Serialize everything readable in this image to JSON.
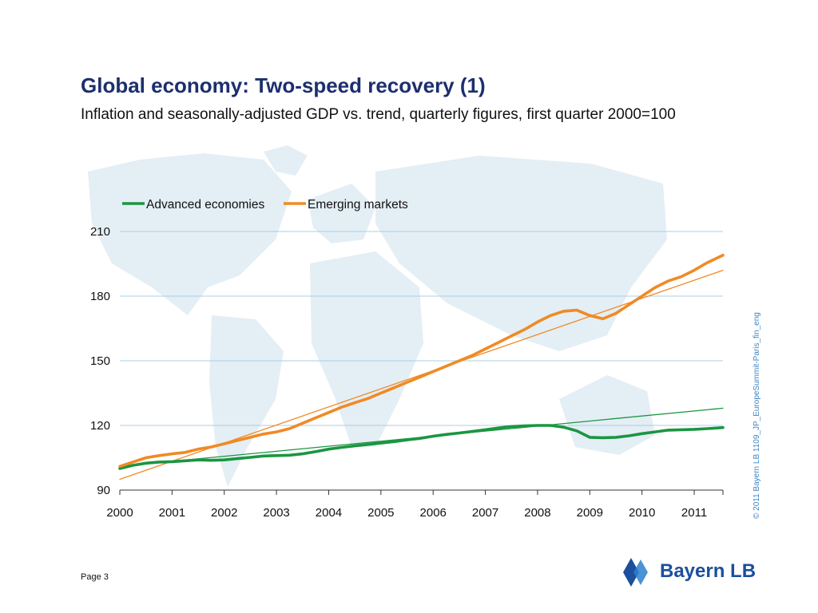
{
  "header": {
    "title": "Global economy: Two-speed recovery (1)",
    "subtitle": "Inflation and seasonally-adjusted GDP vs. trend, quarterly figures, first quarter 2000=100"
  },
  "footer": {
    "page": "Page 3",
    "copyright": "© 2011 Bayern LB  1109_JP_EuropeSummit-Paris_fin_eng",
    "logo": "Bayern LB"
  },
  "colors": {
    "advanced": "#1a9641",
    "emerging": "#f08a24",
    "grid": "#a9cfe6",
    "title": "#1c2f6e",
    "logo": "#1c4f9c"
  },
  "chart_data": {
    "type": "line",
    "legend_position": "top-left",
    "grid": true,
    "ylim": [
      90,
      210
    ],
    "yticks": [
      90,
      120,
      150,
      180,
      210
    ],
    "xlim": [
      2000.0,
      2011.55
    ],
    "xticks": [
      2000,
      2001,
      2002,
      2003,
      2004,
      2005,
      2006,
      2007,
      2008,
      2009,
      2010,
      2011
    ],
    "series": [
      {
        "name": "Advanced economies",
        "kind": "actual",
        "color": "#1a9641",
        "x": [
          2000.0,
          2000.25,
          2000.5,
          2000.75,
          2001.0,
          2001.25,
          2001.5,
          2001.75,
          2002.0,
          2002.25,
          2002.5,
          2002.75,
          2003.0,
          2003.25,
          2003.5,
          2003.75,
          2004.0,
          2004.25,
          2004.5,
          2004.75,
          2005.0,
          2005.25,
          2005.5,
          2005.75,
          2006.0,
          2006.25,
          2006.5,
          2006.75,
          2007.0,
          2007.25,
          2007.5,
          2007.75,
          2008.0,
          2008.25,
          2008.5,
          2008.75,
          2009.0,
          2009.25,
          2009.5,
          2009.75,
          2010.0,
          2010.25,
          2010.5,
          2010.75,
          2011.0,
          2011.25,
          2011.55
        ],
        "values": [
          100.0,
          101.5,
          102.5,
          103.0,
          103.2,
          103.6,
          104.0,
          103.8,
          104.0,
          104.6,
          105.2,
          105.8,
          106.0,
          106.2,
          106.8,
          107.8,
          109.0,
          109.8,
          110.5,
          111.2,
          111.8,
          112.5,
          113.3,
          114.0,
          115.0,
          115.8,
          116.5,
          117.2,
          118.0,
          118.8,
          119.5,
          119.8,
          120.0,
          120.0,
          119.2,
          117.5,
          114.5,
          114.3,
          114.5,
          115.2,
          116.2,
          117.0,
          117.8,
          118.0,
          118.2,
          118.5,
          119.0
        ]
      },
      {
        "name": "Emerging markets",
        "kind": "actual",
        "color": "#f08a24",
        "x": [
          2000.0,
          2000.25,
          2000.5,
          2000.75,
          2001.0,
          2001.25,
          2001.5,
          2001.75,
          2002.0,
          2002.25,
          2002.5,
          2002.75,
          2003.0,
          2003.25,
          2003.5,
          2003.75,
          2004.0,
          2004.25,
          2004.5,
          2004.75,
          2005.0,
          2005.25,
          2005.5,
          2005.75,
          2006.0,
          2006.25,
          2006.5,
          2006.75,
          2007.0,
          2007.25,
          2007.5,
          2007.75,
          2008.0,
          2008.25,
          2008.5,
          2008.75,
          2009.0,
          2009.25,
          2009.5,
          2009.75,
          2010.0,
          2010.25,
          2010.5,
          2010.75,
          2011.0,
          2011.25,
          2011.55
        ],
        "values": [
          101.0,
          103.0,
          105.0,
          106.0,
          106.8,
          107.5,
          109.0,
          110.0,
          111.5,
          113.0,
          114.5,
          116.0,
          117.0,
          118.5,
          121.0,
          123.5,
          126.0,
          128.5,
          130.5,
          132.5,
          135.0,
          137.5,
          140.0,
          142.5,
          145.0,
          147.5,
          150.0,
          152.5,
          155.5,
          158.5,
          161.5,
          164.5,
          168.0,
          171.0,
          173.0,
          173.5,
          171.0,
          169.5,
          172.0,
          176.0,
          180.0,
          184.0,
          187.0,
          189.0,
          192.0,
          195.5,
          199.0
        ]
      },
      {
        "name": "",
        "kind": "trend",
        "color": "#1a9641",
        "x": [
          2000.0,
          2011.55
        ],
        "values": [
          101.0,
          128.0
        ]
      },
      {
        "name": "",
        "kind": "trend",
        "color": "#f08a24",
        "x": [
          2000.0,
          2011.55
        ],
        "values": [
          95.0,
          192.0
        ]
      }
    ]
  }
}
